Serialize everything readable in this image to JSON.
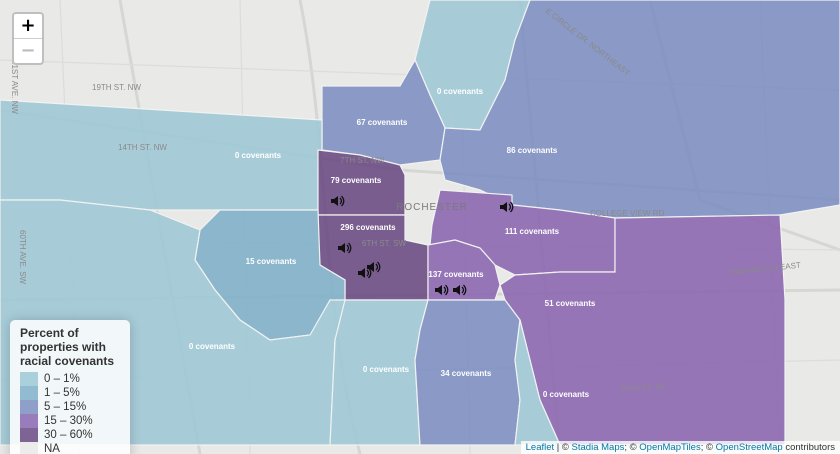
{
  "zoom": {
    "in_label": "+",
    "out_label": "−"
  },
  "legend": {
    "title": "Percent of properties with racial covenants",
    "items": [
      {
        "label": "0 – 1%",
        "color": "#9ec9d6"
      },
      {
        "label": "1 – 5%",
        "color": "#7fb0c9"
      },
      {
        "label": "5 – 15%",
        "color": "#7d8fc2"
      },
      {
        "label": "15 – 30%",
        "color": "#8a66b0"
      },
      {
        "label": "30 – 60%",
        "color": "#6a4a82"
      },
      {
        "label": "NA",
        "color": "#e9e9e7"
      }
    ]
  },
  "regions": [
    {
      "name": "north",
      "label": "0 covenants"
    },
    {
      "name": "north-central",
      "label": "67 covenants"
    },
    {
      "name": "northeast",
      "label": "86 covenants"
    },
    {
      "name": "northwest",
      "label": "0 covenants"
    },
    {
      "name": "downtown-north",
      "label": "79 covenants"
    },
    {
      "name": "downtown",
      "label": "296 covenants"
    },
    {
      "name": "west",
      "label": "15 covenants"
    },
    {
      "name": "east-central",
      "label": "111 covenants"
    },
    {
      "name": "south-central",
      "label": "137 covenants"
    },
    {
      "name": "southeast",
      "label": "51 covenants"
    },
    {
      "name": "southwest",
      "label": "0 covenants"
    },
    {
      "name": "south",
      "label": "0 covenants"
    },
    {
      "name": "south-middle",
      "label": "34 covenants"
    },
    {
      "name": "far-southeast",
      "label": "0 covenants"
    }
  ],
  "basemap_labels": {
    "city": "ROCHESTER",
    "streets": [
      "19TH ST. NW",
      "14TH ST. NW",
      "7TH ST. NW",
      "6TH ST. SW",
      "60TH AVE. SW",
      "E CIRCLE DR. NORTHEAST",
      "HIGHWAY 14 EAST",
      "20TH ST. SE",
      "COLLEGE VIEW RD",
      "41ST AVE. NW"
    ]
  },
  "attribution": {
    "leaflet": "Leaflet",
    "sep1": " | © ",
    "stadia": "Stadia Maps",
    "sep2": "; © ",
    "omt": "OpenMapTiles",
    "sep3": "; © ",
    "osm": "OpenStreetMap",
    "suffix": " contributors"
  }
}
